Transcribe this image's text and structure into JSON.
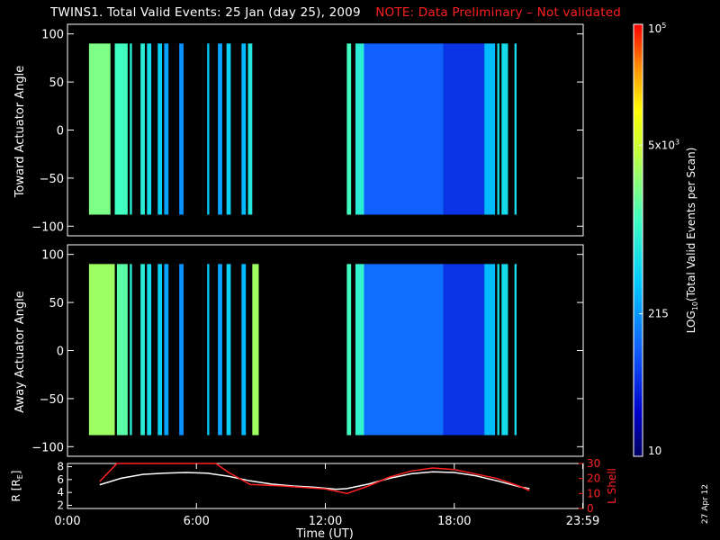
{
  "title": "TWINS1. Total Valid Events: 25 Jan (day  25), 2009",
  "note": "NOTE: Data Preliminary – Not validated",
  "date_stamp": "27 Apr 12",
  "colors": {
    "background": "#000000",
    "note": "#ff2020",
    "r_curve": "#ffffff",
    "lshell_curve": "#ff2020"
  },
  "chart_data": [
    {
      "type": "heatmap",
      "panel": "top",
      "ylabel": "Toward Actuator Angle",
      "ylim": [
        -110,
        110
      ],
      "y_ticks": [
        "100",
        "50",
        "0",
        "−50",
        "−100"
      ],
      "y_tick_values": [
        100,
        50,
        0,
        -50,
        -100
      ],
      "data_y_range": [
        -88,
        90
      ],
      "xlim": [
        0,
        24
      ],
      "blocks": [
        {
          "x": [
            1.0,
            2.0
          ],
          "level": 0.62
        },
        {
          "x": [
            2.2,
            2.8
          ],
          "level": 0.55
        },
        {
          "x": [
            2.9,
            3.0
          ],
          "level": 0.5
        },
        {
          "x": [
            3.4,
            3.6
          ],
          "level": 0.5
        },
        {
          "x": [
            3.7,
            3.9
          ],
          "level": 0.45
        },
        {
          "x": [
            4.2,
            4.4
          ],
          "level": 0.42
        },
        {
          "x": [
            4.5,
            4.7
          ],
          "level": 0.35
        },
        {
          "x": [
            5.2,
            5.4
          ],
          "level": 0.32
        },
        {
          "x": [
            6.5,
            6.6
          ],
          "level": 0.4
        },
        {
          "x": [
            7.0,
            7.2
          ],
          "level": 0.35
        },
        {
          "x": [
            7.4,
            7.6
          ],
          "level": 0.42
        },
        {
          "x": [
            8.1,
            8.3
          ],
          "level": 0.38
        },
        {
          "x": [
            8.4,
            8.6
          ],
          "level": 0.48
        },
        {
          "x": [
            13.0,
            13.2
          ],
          "level": 0.55
        },
        {
          "x": [
            13.4,
            13.8
          ],
          "level": 0.5
        },
        {
          "x": [
            13.8,
            17.5
          ],
          "level": 0.25
        },
        {
          "x": [
            17.5,
            19.4
          ],
          "level": 0.18
        },
        {
          "x": [
            19.4,
            19.9
          ],
          "level": 0.38
        },
        {
          "x": [
            20.0,
            20.1
          ],
          "level": 0.45
        },
        {
          "x": [
            20.2,
            20.5
          ],
          "level": 0.45
        },
        {
          "x": [
            20.8,
            20.9
          ],
          "level": 0.45
        }
      ]
    },
    {
      "type": "heatmap",
      "panel": "middle",
      "ylabel": "Away Actuator Angle",
      "ylim": [
        -110,
        110
      ],
      "y_ticks": [
        "100",
        "50",
        "0",
        "−50",
        "−100"
      ],
      "y_tick_values": [
        100,
        50,
        0,
        -50,
        -100
      ],
      "data_y_range": [
        -88,
        90
      ],
      "xlim": [
        0,
        24
      ],
      "blocks": [
        {
          "x": [
            1.0,
            2.2
          ],
          "level": 0.66
        },
        {
          "x": [
            2.3,
            2.8
          ],
          "level": 0.58
        },
        {
          "x": [
            2.9,
            3.0
          ],
          "level": 0.5
        },
        {
          "x": [
            3.4,
            3.6
          ],
          "level": 0.5
        },
        {
          "x": [
            3.7,
            3.9
          ],
          "level": 0.45
        },
        {
          "x": [
            4.2,
            4.4
          ],
          "level": 0.42
        },
        {
          "x": [
            4.5,
            4.7
          ],
          "level": 0.35
        },
        {
          "x": [
            5.2,
            5.4
          ],
          "level": 0.32
        },
        {
          "x": [
            6.5,
            6.6
          ],
          "level": 0.4
        },
        {
          "x": [
            7.0,
            7.2
          ],
          "level": 0.35
        },
        {
          "x": [
            7.4,
            7.6
          ],
          "level": 0.42
        },
        {
          "x": [
            8.1,
            8.3
          ],
          "level": 0.38
        },
        {
          "x": [
            8.6,
            8.9
          ],
          "level": 0.66
        },
        {
          "x": [
            13.0,
            13.2
          ],
          "level": 0.55
        },
        {
          "x": [
            13.4,
            13.8
          ],
          "level": 0.52
        },
        {
          "x": [
            13.8,
            17.5
          ],
          "level": 0.27
        },
        {
          "x": [
            17.5,
            19.4
          ],
          "level": 0.18
        },
        {
          "x": [
            19.4,
            19.9
          ],
          "level": 0.38
        },
        {
          "x": [
            20.0,
            20.1
          ],
          "level": 0.45
        },
        {
          "x": [
            20.2,
            20.5
          ],
          "level": 0.45
        },
        {
          "x": [
            20.8,
            20.9
          ],
          "level": 0.45
        }
      ]
    },
    {
      "type": "line",
      "panel": "bottom",
      "ylabel_left": "R [R",
      "ylabel_left_sub": "E",
      "ylabel_left_close": "]",
      "ylabel_right": "L Shell",
      "ylim_left": [
        1.5,
        8.5
      ],
      "left_ticks": [
        "8",
        "6",
        "4",
        "2"
      ],
      "left_tick_values": [
        8,
        6,
        4,
        2
      ],
      "ylim_right": [
        0,
        30
      ],
      "right_ticks": [
        "30",
        "20",
        "10",
        "0"
      ],
      "right_tick_values": [
        30,
        20,
        10,
        0
      ],
      "xlim": [
        0,
        24
      ],
      "x_ticks": [
        "0:00",
        "6:00",
        "12:00",
        "18:00",
        "23:59"
      ],
      "x_tick_values": [
        0,
        6,
        12,
        18,
        23.98
      ],
      "xlabel": "Time (UT)",
      "series": [
        {
          "axis": "left",
          "x": [
            1.5,
            2.5,
            3.5,
            4.5,
            5.5,
            6.5,
            7.5,
            8.5,
            9.5,
            10.5,
            11.5,
            12.5,
            13.0,
            14.0,
            15.0,
            16.0,
            17.0,
            18.0,
            19.0,
            20.0,
            21.0,
            21.5
          ],
          "values": [
            5.2,
            6.2,
            6.8,
            7.0,
            7.1,
            7.0,
            6.5,
            5.8,
            5.3,
            5.0,
            4.8,
            4.5,
            4.6,
            5.3,
            6.2,
            6.9,
            7.2,
            7.1,
            6.6,
            5.8,
            4.9,
            4.6
          ]
        },
        {
          "axis": "right",
          "x": [
            1.5,
            2.3,
            6.9,
            7.5,
            8.5,
            10.0,
            12.0,
            13.0,
            14.0,
            15.0,
            16.0,
            17.0,
            18.0,
            19.0,
            20.0,
            21.0,
            21.5
          ],
          "values": [
            18,
            30,
            30,
            24,
            16,
            15,
            13,
            10,
            15,
            21,
            25,
            27,
            26,
            23,
            20,
            15,
            12
          ]
        }
      ]
    }
  ],
  "colorbar": {
    "label_main": "LOG",
    "label_sub": "10",
    "label_rest": "(Total Valid  Events per Scan)",
    "ticks": [
      {
        "label": "10",
        "frac": 0.0
      },
      {
        "label": "215",
        "frac": 0.33
      },
      {
        "label": "5x10",
        "sup": "3",
        "frac": 0.72
      },
      {
        "label": "10",
        "sup": "5",
        "frac": 1.0
      }
    ]
  }
}
